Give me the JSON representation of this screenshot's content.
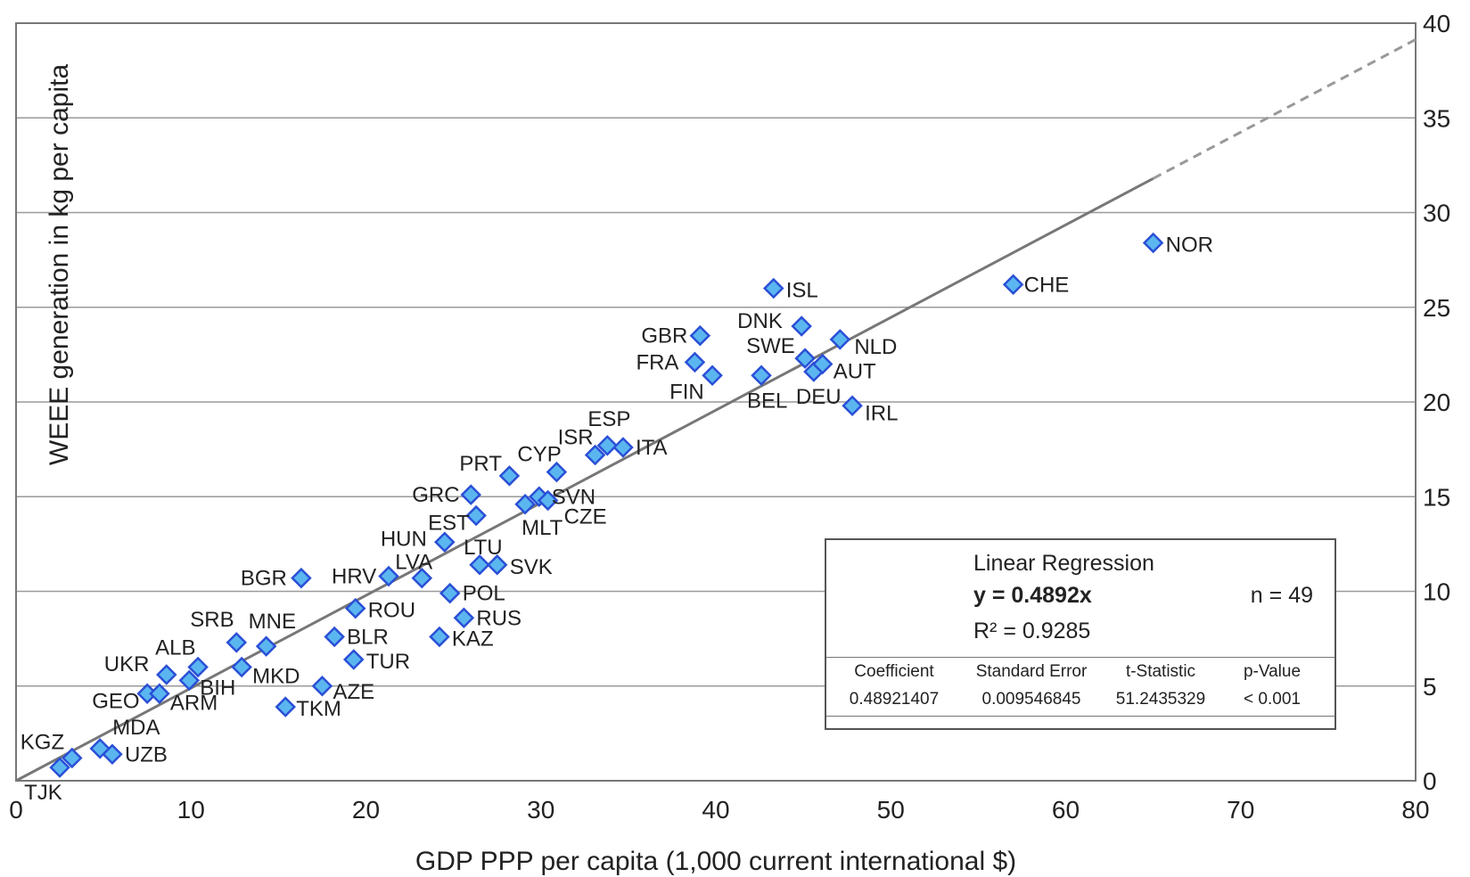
{
  "chart_data": {
    "type": "scatter",
    "title": "",
    "xlabel": "GDP PPP per capita (1,000 current international $)",
    "ylabel": "WEEE generation in kg per capita",
    "xlim": [
      0,
      80
    ],
    "ylim": [
      0,
      40
    ],
    "x_ticks": [
      "0",
      "10",
      "20",
      "30",
      "40",
      "50",
      "60",
      "70",
      "80"
    ],
    "y_ticks": [
      "0",
      "5",
      "10",
      "15",
      "20",
      "25",
      "30",
      "35",
      "40"
    ],
    "y_axis_side": "right",
    "grid": "horizontal",
    "marker_color": "#5bb6f0",
    "marker_edge_color": "#2a4fd6",
    "line_color": "#777777",
    "points": [
      {
        "label": "TJK",
        "x": 2.5,
        "y": 0.7
      },
      {
        "label": "KGZ",
        "x": 3.2,
        "y": 1.2
      },
      {
        "label": "MDA",
        "x": 4.8,
        "y": 1.7
      },
      {
        "label": "UZB",
        "x": 5.5,
        "y": 1.4
      },
      {
        "label": "GEO",
        "x": 7.5,
        "y": 4.6
      },
      {
        "label": "ARM",
        "x": 8.2,
        "y": 4.6
      },
      {
        "label": "UKR",
        "x": 8.6,
        "y": 5.6
      },
      {
        "label": "BIH",
        "x": 9.9,
        "y": 5.3
      },
      {
        "label": "ALB",
        "x": 10.4,
        "y": 6.0
      },
      {
        "label": "SRB",
        "x": 12.6,
        "y": 7.3
      },
      {
        "label": "MKD",
        "x": 12.9,
        "y": 6.0
      },
      {
        "label": "MNE",
        "x": 14.3,
        "y": 7.1
      },
      {
        "label": "TKM",
        "x": 15.4,
        "y": 3.9
      },
      {
        "label": "BGR",
        "x": 16.3,
        "y": 10.7
      },
      {
        "label": "AZE",
        "x": 17.5,
        "y": 5.0
      },
      {
        "label": "BLR",
        "x": 18.2,
        "y": 7.6
      },
      {
        "label": "TUR",
        "x": 19.3,
        "y": 6.4
      },
      {
        "label": "ROU",
        "x": 19.4,
        "y": 9.1
      },
      {
        "label": "HRV",
        "x": 21.3,
        "y": 10.8
      },
      {
        "label": "LVA",
        "x": 23.2,
        "y": 10.7
      },
      {
        "label": "KAZ",
        "x": 24.2,
        "y": 7.6
      },
      {
        "label": "HUN",
        "x": 24.5,
        "y": 12.6
      },
      {
        "label": "POL",
        "x": 24.8,
        "y": 9.9
      },
      {
        "label": "RUS",
        "x": 25.6,
        "y": 8.6
      },
      {
        "label": "GRC",
        "x": 26.0,
        "y": 15.1
      },
      {
        "label": "EST",
        "x": 26.3,
        "y": 14.0
      },
      {
        "label": "LTU",
        "x": 26.5,
        "y": 11.4
      },
      {
        "label": "SVK",
        "x": 27.5,
        "y": 11.4
      },
      {
        "label": "PRT",
        "x": 28.2,
        "y": 16.1
      },
      {
        "label": "MLT",
        "x": 29.1,
        "y": 14.6
      },
      {
        "label": "SVN",
        "x": 29.9,
        "y": 15.0
      },
      {
        "label": "CZE",
        "x": 30.4,
        "y": 14.8
      },
      {
        "label": "CYP",
        "x": 30.9,
        "y": 16.3
      },
      {
        "label": "ISR",
        "x": 33.1,
        "y": 17.2
      },
      {
        "label": "ESP",
        "x": 33.8,
        "y": 17.7
      },
      {
        "label": "ITA",
        "x": 34.7,
        "y": 17.6
      },
      {
        "label": "FRA",
        "x": 38.8,
        "y": 22.1
      },
      {
        "label": "GBR",
        "x": 39.1,
        "y": 23.5
      },
      {
        "label": "FIN",
        "x": 39.8,
        "y": 21.4
      },
      {
        "label": "BEL",
        "x": 42.6,
        "y": 21.4
      },
      {
        "label": "ISL",
        "x": 43.3,
        "y": 26.0
      },
      {
        "label": "DNK",
        "x": 44.9,
        "y": 24.0
      },
      {
        "label": "SWE",
        "x": 45.1,
        "y": 22.3
      },
      {
        "label": "DEU",
        "x": 45.6,
        "y": 21.6
      },
      {
        "label": "AUT",
        "x": 46.1,
        "y": 22.0
      },
      {
        "label": "NLD",
        "x": 47.1,
        "y": 23.3
      },
      {
        "label": "IRL",
        "x": 47.8,
        "y": 19.8
      },
      {
        "label": "CHE",
        "x": 57.0,
        "y": 26.2
      },
      {
        "label": "NOR",
        "x": 65.0,
        "y": 28.4
      }
    ],
    "regression": {
      "slope": 0.4892,
      "solid_x_end": 65.0,
      "title": "Linear Regression",
      "equation": "y = 0.4892x",
      "n": "n = 49",
      "r2": "R² = 0.9285",
      "columns": [
        "Coefficient",
        "Standard Error",
        "t-Statistic",
        "p-Value"
      ],
      "values": [
        "0.48921407",
        "0.009546845",
        "51.2435329",
        "< 0.001"
      ]
    }
  }
}
